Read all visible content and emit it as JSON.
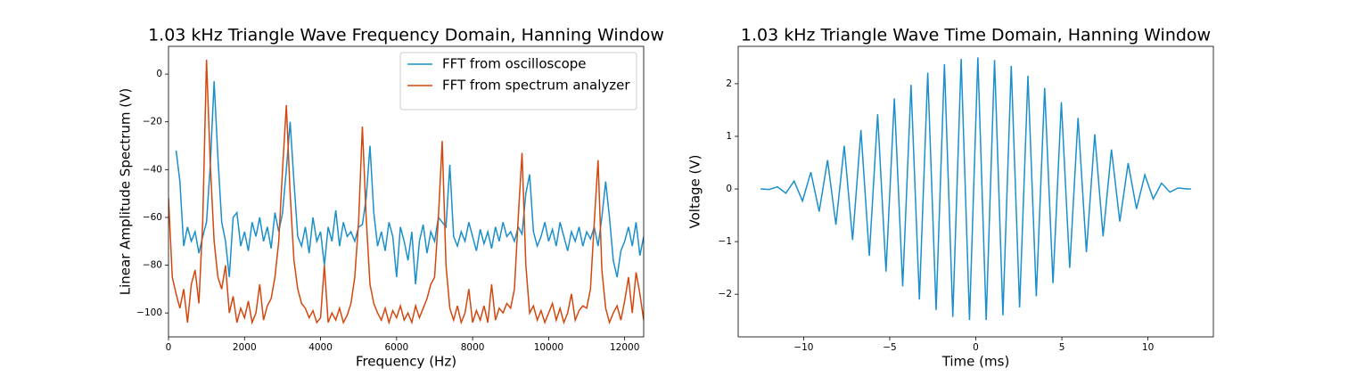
{
  "chart_data": [
    {
      "type": "line",
      "title": "1.03 kHz Triangle Wave Frequency Domain, Hanning Window",
      "xlabel": "Frequency (Hz)",
      "ylabel": "Linear Amplitude Spectrum (V)",
      "x": [
        0,
        100,
        200,
        300,
        400,
        500,
        600,
        700,
        800,
        900,
        1000,
        1100,
        1200,
        1300,
        1400,
        1500,
        1600,
        1700,
        1800,
        1900,
        2000,
        2100,
        2200,
        2300,
        2400,
        2500,
        2600,
        2700,
        2800,
        2900,
        3000,
        3100,
        3200,
        3300,
        3400,
        3500,
        3600,
        3700,
        3800,
        3900,
        4000,
        4100,
        4200,
        4300,
        4400,
        4500,
        4600,
        4700,
        4800,
        4900,
        5000,
        5100,
        5200,
        5300,
        5400,
        5500,
        5600,
        5700,
        5800,
        5900,
        6000,
        6100,
        6200,
        6300,
        6400,
        6500,
        6600,
        6700,
        6800,
        6900,
        7000,
        7100,
        7200,
        7300,
        7400,
        7500,
        7600,
        7700,
        7800,
        7900,
        8000,
        8100,
        8200,
        8300,
        8400,
        8500,
        8600,
        8700,
        8800,
        8900,
        9000,
        9100,
        9200,
        9300,
        9400,
        9500,
        9600,
        9700,
        9800,
        9900,
        10000,
        10100,
        10200,
        10300,
        10400,
        10500,
        10600,
        10700,
        10800,
        10900,
        11000,
        11100,
        11200,
        11300,
        11400,
        11500,
        11600,
        11700,
        11800,
        11900,
        12000,
        12100,
        12200,
        12300,
        12400,
        12500
      ],
      "series": [
        {
          "name": "FFT from oscilloscope",
          "color": "#1a8fcb",
          "values": [
            null,
            null,
            -32,
            -45,
            -72,
            -64,
            -70,
            -66,
            -75,
            -68,
            -62,
            -38,
            -3,
            -35,
            -62,
            -70,
            -85,
            -60,
            -58,
            -72,
            -66,
            -74,
            -62,
            -68,
            -60,
            -70,
            -64,
            -73,
            -58,
            -66,
            -58,
            -40,
            -20,
            -45,
            -68,
            -72,
            -64,
            -75,
            -60,
            -70,
            -66,
            -80,
            -64,
            -70,
            -57,
            -72,
            -62,
            -68,
            -66,
            -70,
            -64,
            -63,
            -52,
            -30,
            -58,
            -72,
            -66,
            -74,
            -62,
            -68,
            -85,
            -64,
            -70,
            -78,
            -66,
            -88,
            -70,
            -63,
            -75,
            -66,
            -70,
            -60,
            -62,
            -64,
            -38,
            -68,
            -72,
            -66,
            -70,
            -62,
            -68,
            -74,
            -65,
            -71,
            -66,
            -73,
            -64,
            -70,
            -62,
            -68,
            -66,
            -70,
            -64,
            -67,
            -50,
            -42,
            -66,
            -72,
            -68,
            -62,
            -70,
            -65,
            -72,
            -62,
            -68,
            -74,
            -66,
            -70,
            -64,
            -72,
            -66,
            -69,
            -64,
            -72,
            -60,
            -45,
            -60,
            -78,
            -85,
            -74,
            -70,
            -64,
            -72,
            -62,
            -76,
            -68
          ]
        },
        {
          "name": "FFT from spectrum analyzer",
          "color": "#d4470f",
          "values": [
            -52,
            -85,
            -92,
            -98,
            -90,
            -104,
            -88,
            -82,
            -96,
            -62,
            6,
            -38,
            -70,
            -85,
            -90,
            -80,
            -100,
            -93,
            -104,
            -98,
            -102,
            -95,
            -104,
            -100,
            -88,
            -103,
            -97,
            -94,
            -85,
            -70,
            -40,
            -13,
            -50,
            -78,
            -90,
            -96,
            -98,
            -102,
            -99,
            -104,
            -102,
            -80,
            -104,
            -100,
            -103,
            -98,
            -104,
            -101,
            -96,
            -85,
            -62,
            -22,
            -60,
            -88,
            -96,
            -100,
            -103,
            -98,
            -104,
            -99,
            -102,
            -97,
            -103,
            -100,
            -104,
            -97,
            -102,
            -98,
            -94,
            -88,
            -85,
            -60,
            -28,
            -80,
            -98,
            -103,
            -97,
            -104,
            -100,
            -90,
            -104,
            -99,
            -103,
            -97,
            -104,
            -88,
            -103,
            -98,
            -100,
            -96,
            -98,
            -90,
            -60,
            -33,
            -80,
            -100,
            -97,
            -103,
            -99,
            -104,
            -100,
            -96,
            -103,
            -98,
            -104,
            -100,
            -92,
            -103,
            -99,
            -97,
            -98,
            -90,
            -62,
            -36,
            -82,
            -98,
            -104,
            -100,
            -97,
            -103,
            -95,
            -85,
            -100,
            -83,
            -92,
            -103
          ]
        }
      ],
      "xlim": [
        0,
        12500
      ],
      "ylim": [
        -110,
        11.6
      ],
      "xticks": [
        0,
        2000,
        4000,
        6000,
        8000,
        10000,
        12000
      ],
      "yticks": [
        {
          "value": -100,
          "label": "−100"
        },
        {
          "value": -80,
          "label": "−80"
        },
        {
          "value": -60,
          "label": "−60"
        },
        {
          "value": -40,
          "label": "−40"
        },
        {
          "value": -20,
          "label": "−20"
        },
        0
      ],
      "legend": "upper right"
    },
    {
      "type": "line",
      "title": "1.03 kHz Triangle Wave Time Domain, Hanning Window",
      "xlabel": "Time (ms)",
      "ylabel": "Voltage (V)",
      "x": [
        -12.5,
        -12.005,
        -11.52,
        -11.035,
        -10.55,
        -10.065,
        -9.58,
        -9.095,
        -8.61,
        -8.125,
        -7.64,
        -7.155,
        -6.67,
        -6.185,
        -5.7,
        -5.215,
        -4.73,
        -4.245,
        -3.76,
        -3.275,
        -2.79,
        -2.305,
        -1.82,
        -1.335,
        -0.85,
        -0.365,
        0.12,
        0.605,
        1.09,
        1.575,
        2.06,
        2.545,
        3.03,
        3.515,
        4.0,
        4.485,
        4.97,
        5.455,
        5.94,
        6.425,
        6.91,
        7.395,
        7.88,
        8.365,
        8.85,
        9.335,
        9.82,
        10.305,
        10.79,
        11.275,
        11.76,
        12.245,
        12.5
      ],
      "series": [
        {
          "name": "Voltage",
          "color": "#1a8fcb",
          "values": [
            0,
            -0.01,
            0.04,
            -0.08,
            0.15,
            -0.23,
            0.32,
            -0.43,
            0.55,
            -0.68,
            0.82,
            -0.97,
            1.12,
            -1.27,
            1.42,
            -1.57,
            1.72,
            -1.85,
            1.98,
            -2.1,
            2.21,
            -2.3,
            2.37,
            -2.43,
            2.47,
            -2.49,
            2.5,
            -2.49,
            2.45,
            -2.4,
            2.34,
            -2.25,
            2.15,
            -2.04,
            1.92,
            -1.79,
            1.65,
            -1.5,
            1.35,
            -1.2,
            1.04,
            -0.9,
            0.75,
            -0.62,
            0.49,
            -0.38,
            0.27,
            -0.19,
            0.11,
            -0.06,
            0.02,
            0,
            0
          ]
        }
      ],
      "xlim": [
        -13.8,
        13.8
      ],
      "ylim": [
        -2.81,
        2.71
      ],
      "xticks": [
        {
          "value": -10,
          "label": "−10"
        },
        {
          "value": -5,
          "label": "−5"
        },
        0,
        5,
        10
      ],
      "yticks": [
        {
          "value": -2,
          "label": "−2"
        },
        {
          "value": -1,
          "label": "−1"
        },
        0,
        1,
        2
      ]
    }
  ]
}
